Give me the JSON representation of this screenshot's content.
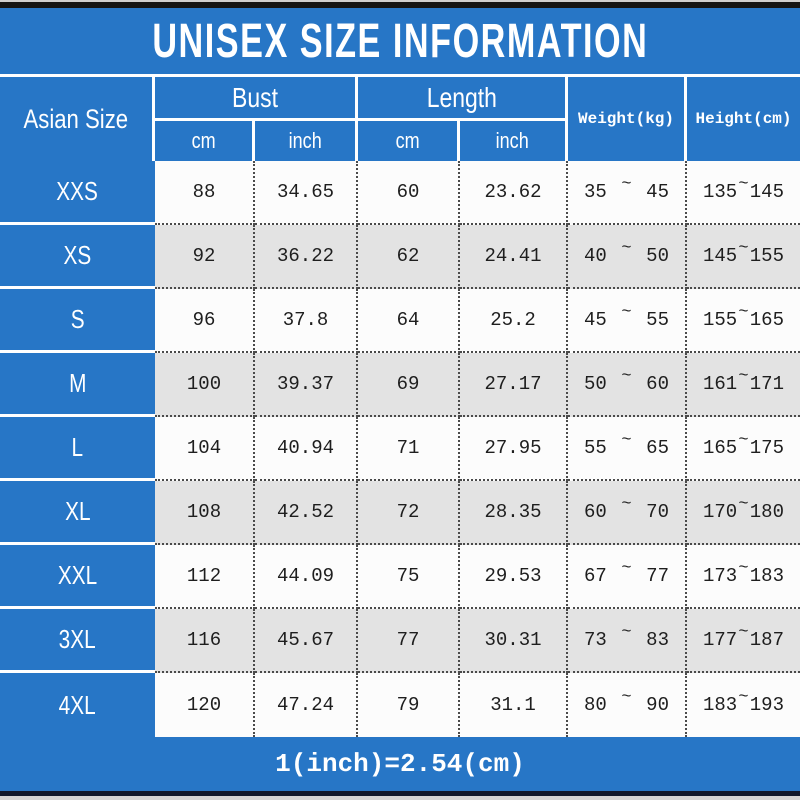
{
  "title": "UNISEX SIZE INFORMATION",
  "footer_note": "1(inch)=2.54(cm)",
  "tilde": "~",
  "colors": {
    "accent_blue": "#2776C6",
    "row_alt_gray": "#E3E3E3",
    "row_white": "#FCFCFC",
    "band_black": "#141414",
    "text_dark": "#1E1E1E"
  },
  "header": {
    "asian_size": "Asian Size",
    "bust": "Bust",
    "length": "Length",
    "cm": "cm",
    "inch": "inch",
    "weight": "Weight(kg)",
    "height": "Height(cm)"
  },
  "rows": [
    {
      "size": "XXS",
      "bust_cm": "88",
      "bust_inch": "34.65",
      "length_cm": "60",
      "length_inch": "23.62",
      "weight": {
        "min": "35",
        "max": "45"
      },
      "height": {
        "min": "135",
        "max": "145"
      }
    },
    {
      "size": "XS",
      "bust_cm": "92",
      "bust_inch": "36.22",
      "length_cm": "62",
      "length_inch": "24.41",
      "weight": {
        "min": "40",
        "max": "50"
      },
      "height": {
        "min": "145",
        "max": "155"
      }
    },
    {
      "size": "S",
      "bust_cm": "96",
      "bust_inch": "37.8",
      "length_cm": "64",
      "length_inch": "25.2",
      "weight": {
        "min": "45",
        "max": "55"
      },
      "height": {
        "min": "155",
        "max": "165"
      }
    },
    {
      "size": "M",
      "bust_cm": "100",
      "bust_inch": "39.37",
      "length_cm": "69",
      "length_inch": "27.17",
      "weight": {
        "min": "50",
        "max": "60"
      },
      "height": {
        "min": "161",
        "max": "171"
      }
    },
    {
      "size": "L",
      "bust_cm": "104",
      "bust_inch": "40.94",
      "length_cm": "71",
      "length_inch": "27.95",
      "weight": {
        "min": "55",
        "max": "65"
      },
      "height": {
        "min": "165",
        "max": "175"
      }
    },
    {
      "size": "XL",
      "bust_cm": "108",
      "bust_inch": "42.52",
      "length_cm": "72",
      "length_inch": "28.35",
      "weight": {
        "min": "60",
        "max": "70"
      },
      "height": {
        "min": "170",
        "max": "180"
      }
    },
    {
      "size": "XXL",
      "bust_cm": "112",
      "bust_inch": "44.09",
      "length_cm": "75",
      "length_inch": "29.53",
      "weight": {
        "min": "67",
        "max": "77"
      },
      "height": {
        "min": "173",
        "max": "183"
      }
    },
    {
      "size": "3XL",
      "bust_cm": "116",
      "bust_inch": "45.67",
      "length_cm": "77",
      "length_inch": "30.31",
      "weight": {
        "min": "73",
        "max": "83"
      },
      "height": {
        "min": "177",
        "max": "187"
      }
    },
    {
      "size": "4XL",
      "bust_cm": "120",
      "bust_inch": "47.24",
      "length_cm": "79",
      "length_inch": "31.1",
      "weight": {
        "min": "80",
        "max": "90"
      },
      "height": {
        "min": "183",
        "max": "193"
      }
    }
  ]
}
